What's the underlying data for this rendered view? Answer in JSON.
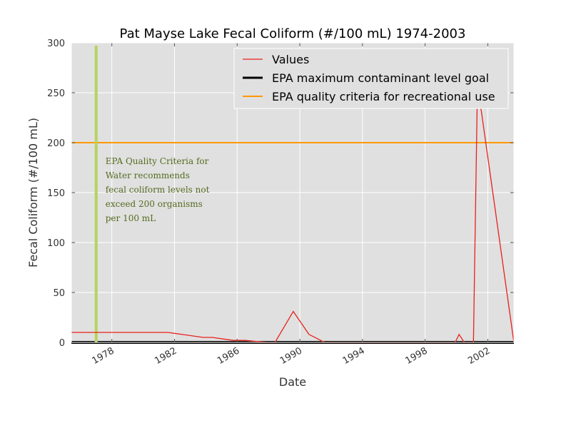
{
  "chart_data": {
    "type": "line",
    "title": "Pat Mayse Lake Fecal Coliform (#/100 mL) 1974-2003",
    "xlabel": "Date",
    "ylabel": "Fecal Coliform (#/100 mL)",
    "xlim": [
      "1975-06-01",
      "2003-09-01"
    ],
    "ylim": [
      0,
      300
    ],
    "yticks": [
      0,
      50,
      100,
      150,
      200,
      250,
      300
    ],
    "xticks": [
      "1978",
      "1982",
      "1986",
      "1990",
      "1994",
      "1998",
      "2002"
    ],
    "grid": true,
    "legend_position": "top-right",
    "series": [
      {
        "name": "Values",
        "color": "#e8211b",
        "points": [
          [
            "1975-06-01",
            10
          ],
          [
            "1981-08-01",
            10
          ],
          [
            "1983-11-01",
            5
          ],
          [
            "1984-06-01",
            5
          ],
          [
            "1985-10-01",
            2
          ],
          [
            "1986-07-01",
            2
          ],
          [
            "1987-12-01",
            0
          ],
          [
            "1988-06-01",
            0
          ],
          [
            "1989-08-01",
            31
          ],
          [
            "1990-08-01",
            8
          ],
          [
            "1991-08-01",
            0
          ],
          [
            "1999-12-01",
            0
          ],
          [
            "2000-03-01",
            8
          ],
          [
            "2000-07-01",
            0
          ],
          [
            "2001-02-01",
            0
          ],
          [
            "2001-05-01",
            250
          ],
          [
            "2001-08-01",
            232
          ],
          [
            "2003-09-01",
            0
          ]
        ]
      },
      {
        "name": "EPA maximum contaminant level goal",
        "color": "#000000",
        "y": 0
      },
      {
        "name": "EPA quality criteria for recreational use",
        "color": "#ff9900",
        "y": 200
      }
    ],
    "marker_line": {
      "x": "1977-01-01",
      "color": "#b6d35f"
    },
    "annotation": {
      "lines": [
        "EPA Quality Criteria for",
        "Water recommends",
        "fecal coliform levels not",
        "exceed 200 organisms",
        "per 100 mL"
      ]
    }
  }
}
